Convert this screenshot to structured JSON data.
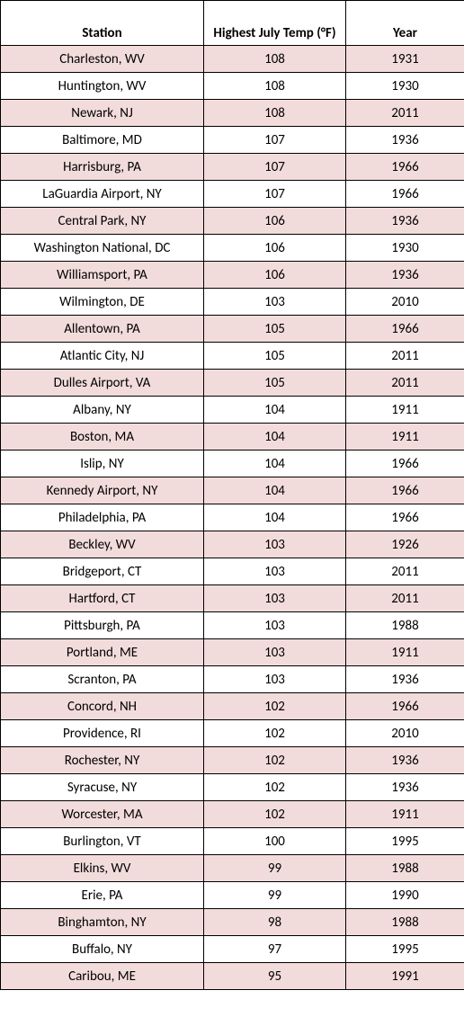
{
  "table": {
    "columns": [
      {
        "label": "Station"
      },
      {
        "label": "Highest July Temp (°F)"
      },
      {
        "label": "Year"
      }
    ],
    "row_colors": {
      "odd": "#f2dcdb",
      "even": "#ffffff"
    },
    "border_color": "#000000",
    "header_font_weight": "700",
    "font_family": "Calibri",
    "rows": [
      {
        "station": "Charleston, WV",
        "temp": "108",
        "year": "1931"
      },
      {
        "station": "Huntington, WV",
        "temp": "108",
        "year": "1930"
      },
      {
        "station": "Newark, NJ",
        "temp": "108",
        "year": "2011"
      },
      {
        "station": "Baltimore, MD",
        "temp": "107",
        "year": "1936"
      },
      {
        "station": "Harrisburg, PA",
        "temp": "107",
        "year": "1966"
      },
      {
        "station": "LaGuardia Airport, NY",
        "temp": "107",
        "year": "1966"
      },
      {
        "station": "Central Park, NY",
        "temp": "106",
        "year": "1936"
      },
      {
        "station": "Washington National, DC",
        "temp": "106",
        "year": "1930"
      },
      {
        "station": "Williamsport, PA",
        "temp": "106",
        "year": "1936"
      },
      {
        "station": "Wilmington, DE",
        "temp": "103",
        "year": "2010"
      },
      {
        "station": "Allentown, PA",
        "temp": "105",
        "year": "1966"
      },
      {
        "station": "Atlantic City, NJ",
        "temp": "105",
        "year": "2011"
      },
      {
        "station": "Dulles Airport, VA",
        "temp": "105",
        "year": "2011"
      },
      {
        "station": "Albany, NY",
        "temp": "104",
        "year": "1911"
      },
      {
        "station": "Boston, MA",
        "temp": "104",
        "year": "1911"
      },
      {
        "station": "Islip, NY",
        "temp": "104",
        "year": "1966"
      },
      {
        "station": "Kennedy Airport, NY",
        "temp": "104",
        "year": "1966"
      },
      {
        "station": "Philadelphia, PA",
        "temp": "104",
        "year": "1966"
      },
      {
        "station": "Beckley, WV",
        "temp": "103",
        "year": "1926"
      },
      {
        "station": "Bridgeport, CT",
        "temp": "103",
        "year": "2011"
      },
      {
        "station": "Hartford, CT",
        "temp": "103",
        "year": "2011"
      },
      {
        "station": "Pittsburgh, PA",
        "temp": "103",
        "year": "1988"
      },
      {
        "station": "Portland, ME",
        "temp": "103",
        "year": "1911"
      },
      {
        "station": "Scranton, PA",
        "temp": "103",
        "year": "1936"
      },
      {
        "station": "Concord, NH",
        "temp": "102",
        "year": "1966"
      },
      {
        "station": "Providence, RI",
        "temp": "102",
        "year": "2010"
      },
      {
        "station": "Rochester, NY",
        "temp": "102",
        "year": "1936"
      },
      {
        "station": "Syracuse, NY",
        "temp": "102",
        "year": "1936"
      },
      {
        "station": "Worcester, MA",
        "temp": "102",
        "year": "1911"
      },
      {
        "station": "Burlington, VT",
        "temp": "100",
        "year": "1995"
      },
      {
        "station": "Elkins, WV",
        "temp": "99",
        "year": "1988"
      },
      {
        "station": "Erie, PA",
        "temp": "99",
        "year": "1990"
      },
      {
        "station": "Binghamton, NY",
        "temp": "98",
        "year": "1988"
      },
      {
        "station": "Buffalo, NY",
        "temp": "97",
        "year": "1995"
      },
      {
        "station": "Caribou, ME",
        "temp": "95",
        "year": "1991"
      }
    ]
  }
}
